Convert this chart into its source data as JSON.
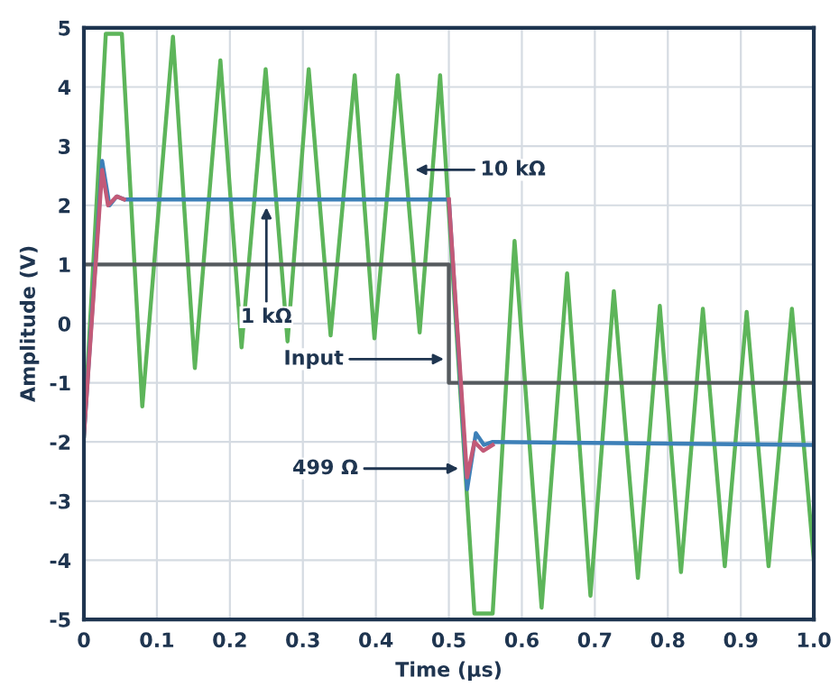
{
  "chart_data": {
    "type": "line",
    "xlabel": "Time (µs)",
    "ylabel": "Amplitude (V)",
    "xlim": [
      0,
      1.0
    ],
    "ylim": [
      -5,
      5
    ],
    "xticks": [
      0,
      0.1,
      0.2,
      0.3,
      0.4,
      0.5,
      0.6,
      0.7,
      0.8,
      0.9,
      {
        "value": 1.0,
        "label": "1.0"
      }
    ],
    "yticks": [
      -5,
      -4,
      -3,
      -2,
      -1,
      0,
      1,
      2,
      3,
      4,
      5
    ],
    "grid": true,
    "marker": "none",
    "line_style": "solid",
    "series": [
      {
        "color": "#5db55a",
        "x": [
          0,
          0.03,
          0.052,
          0.08,
          0.122,
          0.152,
          0.187,
          0.216,
          0.249,
          0.279,
          0.308,
          0.338,
          0.371,
          0.398,
          0.43,
          0.46,
          0.488,
          0.535,
          0.56,
          0.59,
          0.627,
          0.662,
          0.694,
          0.726,
          0.759,
          0.789,
          0.818,
          0.848,
          0.878,
          0.908,
          0.938,
          0.97,
          1.0
        ],
        "values": [
          -1.9,
          4.9,
          4.9,
          -1.4,
          4.85,
          -0.75,
          4.45,
          -0.4,
          4.3,
          -0.3,
          4.3,
          -0.2,
          4.2,
          -0.25,
          4.2,
          -0.15,
          4.2,
          -4.9,
          -4.9,
          1.4,
          -4.8,
          0.85,
          -4.6,
          0.55,
          -4.3,
          0.3,
          -4.2,
          0.25,
          -4.1,
          0.2,
          -4.1,
          0.25,
          -4.0
        ]
      },
      {
        "color": "#555a5e",
        "x": [
          0,
          0.5,
          0.5,
          1.0
        ],
        "values": [
          1,
          1,
          -1,
          -1
        ]
      },
      {
        "color": "#3d80b8",
        "x": [
          0,
          0.025,
          0.035,
          0.045,
          0.055,
          0.5,
          0.525,
          0.537,
          0.548,
          0.56,
          1.0
        ],
        "values": [
          -1.9,
          2.75,
          2.0,
          2.15,
          2.1,
          2.1,
          -2.8,
          -1.85,
          -2.05,
          -2.0,
          -2.05
        ]
      },
      {
        "color": "#c25a78",
        "x": [
          0,
          0.025,
          0.033,
          0.045,
          0.055,
          0.3,
          0.5,
          0.525,
          0.535,
          0.547,
          0.56
        ],
        "values": [
          -1.9,
          2.6,
          2.0,
          2.15,
          2.1,
          null,
          2.1,
          -2.6,
          -2.0,
          -2.15,
          -2.05
        ]
      }
    ],
    "annotations": [
      {
        "text": "10 kΩ",
        "x": 0.447,
        "y": 2.6
      },
      {
        "text": "1 kΩ",
        "x": 0.25,
        "y": 2.05
      },
      {
        "text": "Input",
        "x": 0.5,
        "y": -0.6
      },
      {
        "text": "499 Ω",
        "x": 0.52,
        "y": -2.45
      }
    ]
  }
}
